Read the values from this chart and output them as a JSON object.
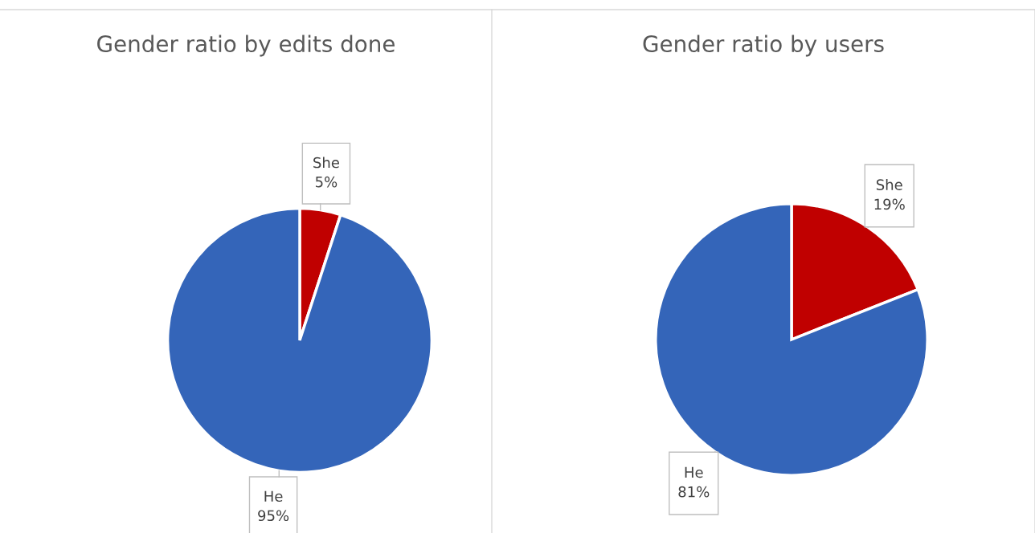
{
  "chart_data": [
    {
      "type": "pie",
      "title": "Gender ratio by edits done",
      "categories": [
        "She",
        "He"
      ],
      "values": [
        5,
        95
      ],
      "colors": [
        "#c00000",
        "#3465b9"
      ],
      "value_labels": [
        "5%",
        "95%"
      ]
    },
    {
      "type": "pie",
      "title": "Gender ratio by users",
      "categories": [
        "She",
        "He"
      ],
      "values": [
        19,
        81
      ],
      "colors": [
        "#c00000",
        "#3465b9"
      ],
      "value_labels": [
        "19%",
        "81%"
      ]
    }
  ]
}
